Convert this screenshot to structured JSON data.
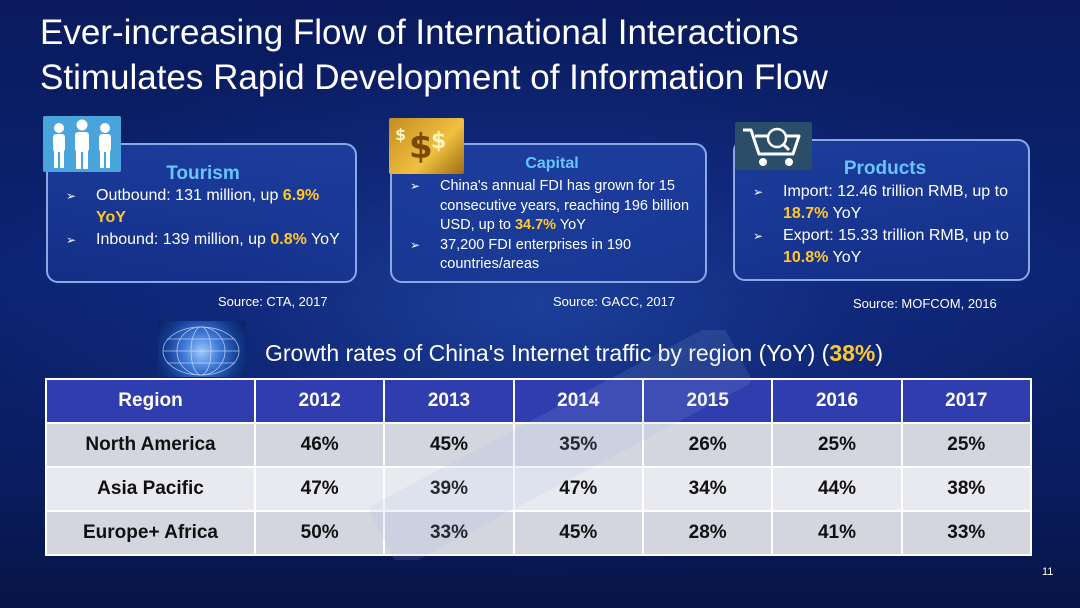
{
  "slide": {
    "title_line1": "Ever-increasing Flow of International Interactions",
    "title_line2": "Stimulates Rapid Development of Information Flow",
    "page_number": "11"
  },
  "panels": {
    "tourism": {
      "title": "Tourism",
      "icon": "people-icon",
      "b1_text": "Outbound: 131 million, up ",
      "b1_hl": "6.9% YoY",
      "b2_text": "Inbound: 139 million, up ",
      "b2_hl": "0.8%",
      "b2_tail": " YoY",
      "source": "Source: CTA, 2017"
    },
    "capital": {
      "title": "Capital",
      "icon": "money-icon",
      "b1_text": "China's annual FDI has grown for 15 consecutive years, reaching 196 billion USD, up to ",
      "b1_hl": "34.7%",
      "b1_tail": " YoY",
      "b2_text": "37,200 FDI enterprises in 190 countries/areas",
      "source": "Source: GACC, 2017"
    },
    "products": {
      "title": "Products",
      "icon": "shopping-cart-icon",
      "b1_text": "Import: 12.46 trillion RMB, up to ",
      "b1_hl": "18.7%",
      "b1_tail": " YoY",
      "b2_text": "Export: 15.33 trillion RMB, up to ",
      "b2_hl": "10.8%",
      "b2_tail": " YoY",
      "source": "Source: MOFCOM, 2016"
    }
  },
  "traffic": {
    "heading_text": "Growth rates of China's Internet traffic by region (YoY) (",
    "heading_hl": "38%",
    "heading_tail": ")",
    "icon": "globe-icon",
    "headers": [
      "Region",
      "2012",
      "2013",
      "2014",
      "2015",
      "2016",
      "2017"
    ],
    "rows": [
      [
        "North America",
        "46%",
        "45%",
        "35%",
        "26%",
        "25%",
        "25%"
      ],
      [
        "Asia Pacific",
        "47%",
        "39%",
        "47%",
        "34%",
        "44%",
        "38%"
      ],
      [
        "Europe+ Africa",
        "50%",
        "33%",
        "45%",
        "28%",
        "41%",
        "33%"
      ]
    ]
  },
  "colors": {
    "highlight": "#ffc928",
    "panel_title": "#69c3ff",
    "table_header": "#2f3dae"
  }
}
